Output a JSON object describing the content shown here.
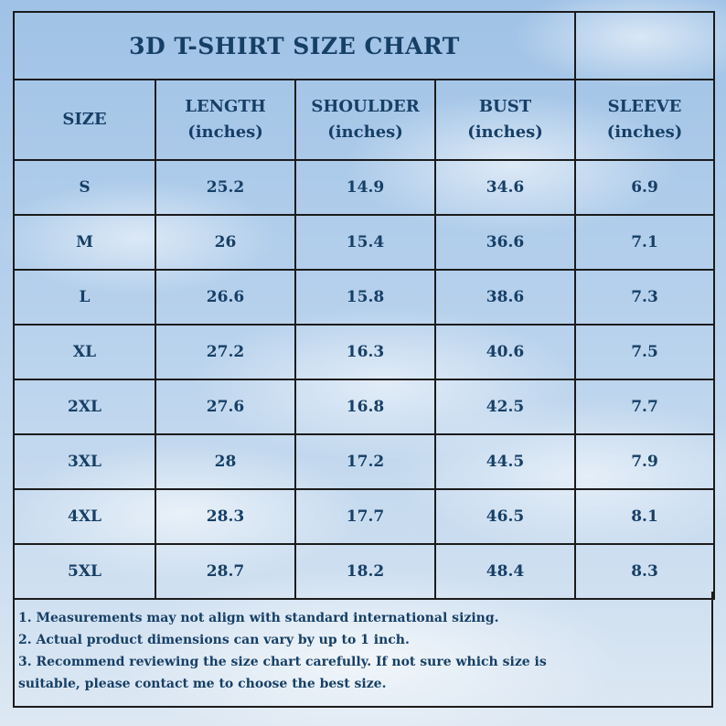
{
  "title": "3D T-SHIRT SIZE CHART",
  "headers": [
    {
      "label": "SIZE",
      "unit": ""
    },
    {
      "label": "LENGTH",
      "unit": "(inches)"
    },
    {
      "label": "SHOULDER",
      "unit": "(inches)"
    },
    {
      "label": "BUST",
      "unit": "(inches)"
    },
    {
      "label": "SLEEVE",
      "unit": "(inches)"
    }
  ],
  "rows": [
    [
      "S",
      "25.2",
      "14.9",
      "34.6",
      "6.9"
    ],
    [
      "M",
      "26",
      "15.4",
      "36.6",
      "7.1"
    ],
    [
      "L",
      "26.6",
      "15.8",
      "38.6",
      "7.3"
    ],
    [
      "XL",
      "27.2",
      "16.3",
      "40.6",
      "7.5"
    ],
    [
      "2XL",
      "27.6",
      "16.8",
      "42.5",
      "7.7"
    ],
    [
      "3XL",
      "28",
      "17.2",
      "44.5",
      "7.9"
    ],
    [
      "4XL",
      "28.3",
      "17.7",
      "46.5",
      "8.1"
    ],
    [
      "5XL",
      "28.7",
      "18.2",
      "48.4",
      "8.3"
    ]
  ],
  "notes": [
    "1. Measurements may not align with standard international sizing.",
    "2. Actual product dimensions can vary by up to 1 inch.",
    "3. Recommend reviewing the size chart carefully. If not sure which size is",
    "suitable, please contact me to choose the best size."
  ],
  "colors": {
    "text": "#163f66",
    "border": "#1b1b1b",
    "sky": "#b5d0ec"
  }
}
